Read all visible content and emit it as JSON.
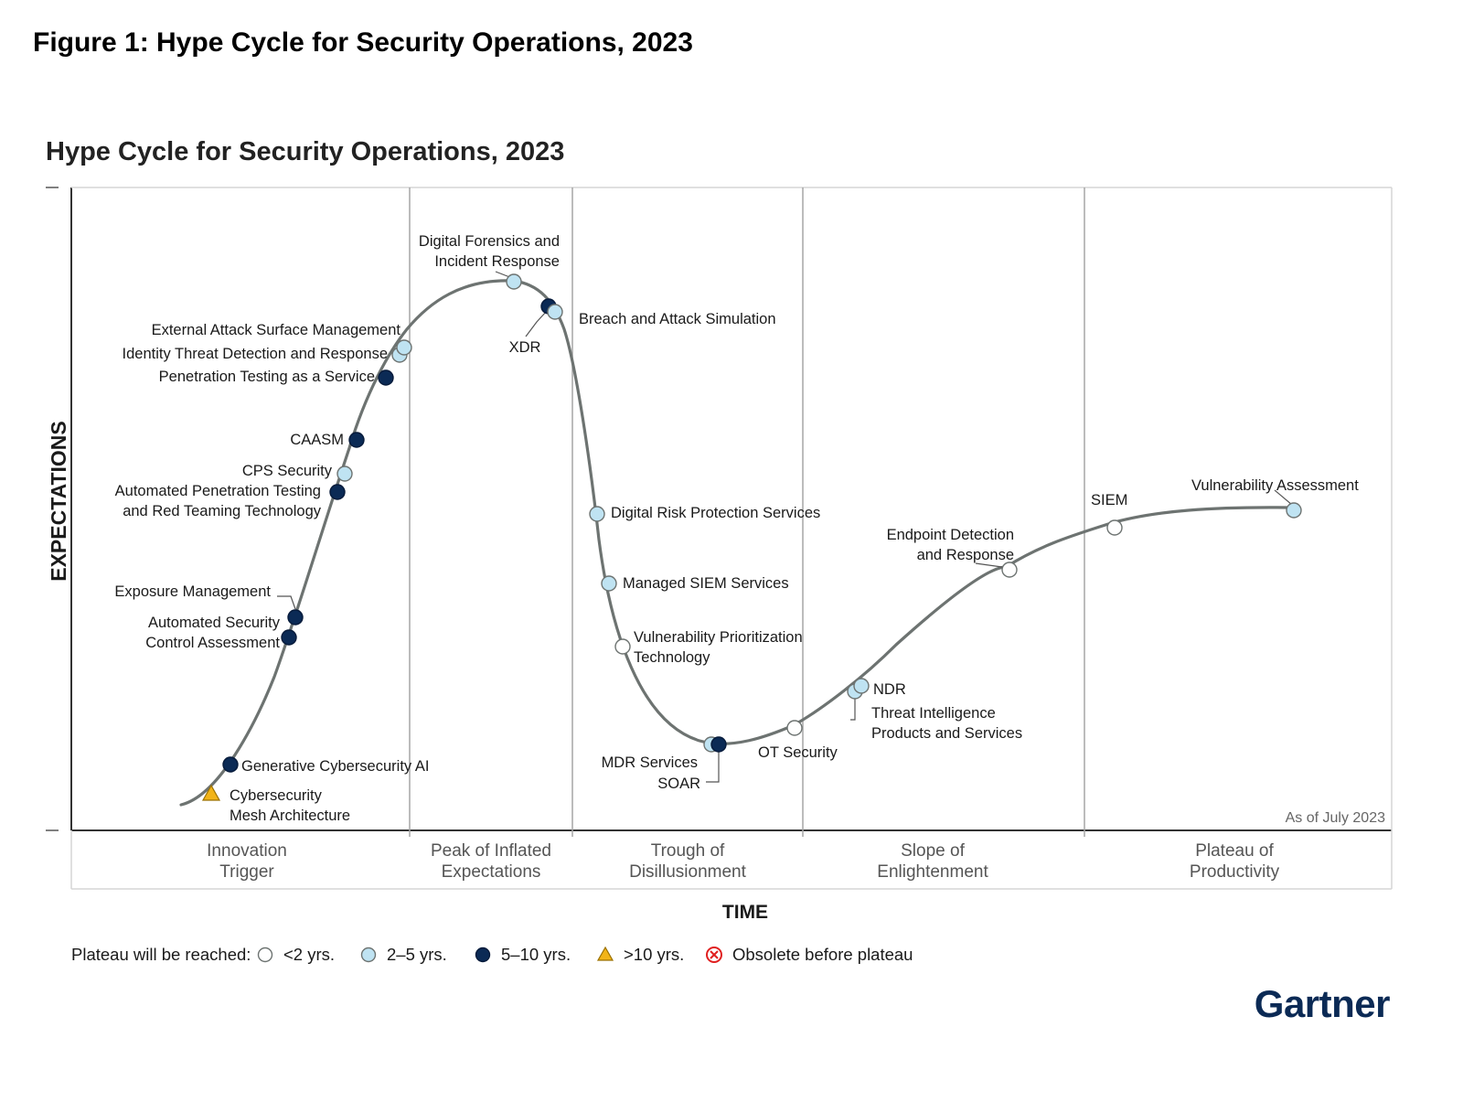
{
  "figure_title": "Figure 1: Hype Cycle for Security Operations, 2023",
  "chart_title": "Hype Cycle for Security Operations, 2023",
  "y_axis_label": "EXPECTATIONS",
  "x_axis_label": "TIME",
  "as_of": "As of July 2023",
  "brand": "Gartner",
  "colors": {
    "lt2": "#ffffff",
    "y2to5": "#bfe3f2",
    "y5to10": "#0b2a55",
    "gt10": "#f2b418",
    "obsolete": "#e02020",
    "curve": "#6d7371",
    "divider": "#a6a6a6",
    "brand": "#0b2a55"
  },
  "phases": [
    {
      "lines": [
        "Innovation",
        "Trigger"
      ]
    },
    {
      "lines": [
        "Peak of Inflated",
        "Expectations"
      ]
    },
    {
      "lines": [
        "Trough of",
        "Disillusionment"
      ]
    },
    {
      "lines": [
        "Slope of",
        "Enlightenment"
      ]
    },
    {
      "lines": [
        "Plateau of",
        "Productivity"
      ]
    }
  ],
  "legend": {
    "prefix": "Plateau will be reached:",
    "items": [
      {
        "label": "<2 yrs.",
        "type": "lt2",
        "icon": "white-circle-icon"
      },
      {
        "label": "2–5 yrs.",
        "type": "y2to5",
        "icon": "light-blue-circle-icon"
      },
      {
        "label": "5–10 yrs.",
        "type": "y5to10",
        "icon": "dark-blue-circle-icon"
      },
      {
        "label": ">10 yrs.",
        "type": "gt10",
        "icon": "triangle-icon"
      },
      {
        "label": "Obsolete before plateau",
        "type": "obsolete",
        "icon": "x-circle-icon"
      }
    ]
  },
  "technologies": [
    {
      "lines": [
        "Cybersecurity",
        "Mesh Architecture"
      ],
      "phase": "Innovation Trigger",
      "plateau": "gt10"
    },
    {
      "lines": [
        "Generative Cybersecurity AI"
      ],
      "phase": "Innovation Trigger",
      "plateau": "y5to10"
    },
    {
      "lines": [
        "Automated Security",
        "Control Assessment"
      ],
      "phase": "Innovation Trigger",
      "plateau": "y5to10"
    },
    {
      "lines": [
        "Exposure Management"
      ],
      "phase": "Innovation Trigger",
      "plateau": "y5to10"
    },
    {
      "lines": [
        "Automated Penetration Testing",
        "and Red Teaming Technology"
      ],
      "phase": "Innovation Trigger",
      "plateau": "y5to10"
    },
    {
      "lines": [
        "CPS Security"
      ],
      "phase": "Innovation Trigger",
      "plateau": "y2to5"
    },
    {
      "lines": [
        "CAASM"
      ],
      "phase": "Innovation Trigger",
      "plateau": "y5to10"
    },
    {
      "lines": [
        "Penetration Testing as a Service"
      ],
      "phase": "Innovation Trigger",
      "plateau": "y5to10"
    },
    {
      "lines": [
        "Identity Threat Detection and Response"
      ],
      "phase": "Innovation Trigger",
      "plateau": "y2to5"
    },
    {
      "lines": [
        "External Attack Surface Management"
      ],
      "phase": "Innovation Trigger",
      "plateau": "y2to5"
    },
    {
      "lines": [
        "Digital Forensics and",
        "Incident Response"
      ],
      "phase": "Peak of Inflated Expectations",
      "plateau": "y2to5"
    },
    {
      "lines": [
        "XDR"
      ],
      "phase": "Peak of Inflated Expectations",
      "plateau": "y5to10"
    },
    {
      "lines": [
        "Breach and Attack Simulation"
      ],
      "phase": "Peak of Inflated Expectations",
      "plateau": "y2to5"
    },
    {
      "lines": [
        "Digital Risk Protection Services"
      ],
      "phase": "Trough of Disillusionment",
      "plateau": "y2to5"
    },
    {
      "lines": [
        "Managed SIEM Services"
      ],
      "phase": "Trough of Disillusionment",
      "plateau": "y2to5"
    },
    {
      "lines": [
        "Vulnerability Prioritization",
        "Technology"
      ],
      "phase": "Trough of Disillusionment",
      "plateau": "lt2"
    },
    {
      "lines": [
        "MDR Services"
      ],
      "phase": "Trough of Disillusionment",
      "plateau": "y2to5"
    },
    {
      "lines": [
        "SOAR"
      ],
      "phase": "Trough of Disillusionment",
      "plateau": "y5to10"
    },
    {
      "lines": [
        "OT Security"
      ],
      "phase": "Trough of Disillusionment",
      "plateau": "lt2"
    },
    {
      "lines": [
        "Threat Intelligence",
        "Products and Services"
      ],
      "phase": "Slope of Enlightenment",
      "plateau": "y2to5"
    },
    {
      "lines": [
        "NDR"
      ],
      "phase": "Slope of Enlightenment",
      "plateau": "y2to5"
    },
    {
      "lines": [
        "Endpoint Detection",
        "and Response"
      ],
      "phase": "Slope of Enlightenment",
      "plateau": "lt2"
    },
    {
      "lines": [
        "SIEM"
      ],
      "phase": "Plateau of Productivity",
      "plateau": "lt2"
    },
    {
      "lines": [
        "Vulnerability Assessment"
      ],
      "phase": "Plateau of Productivity",
      "plateau": "y2to5"
    }
  ]
}
